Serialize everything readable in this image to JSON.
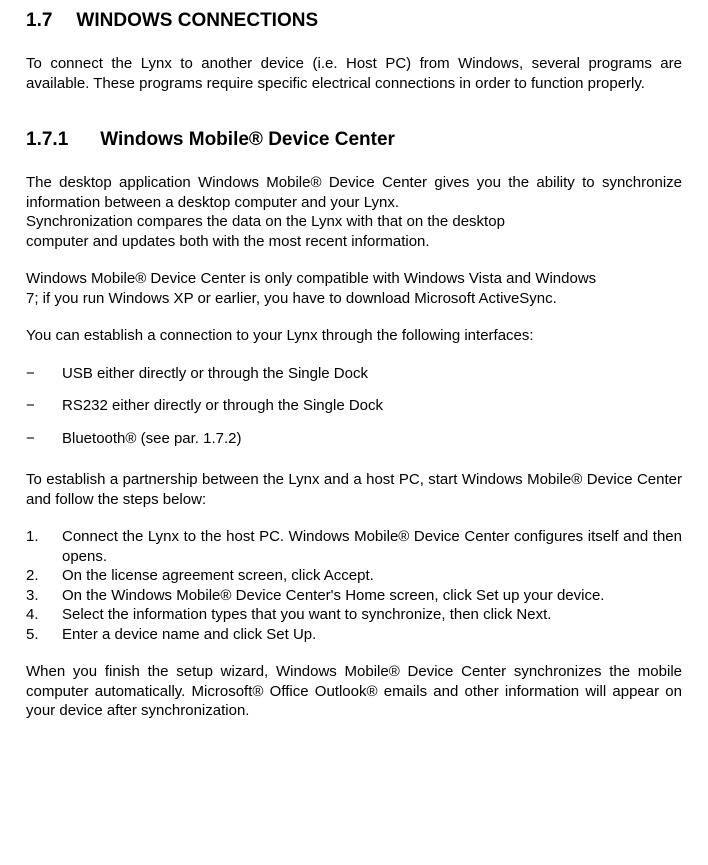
{
  "heading1": {
    "number": "1.7",
    "title": "WINDOWS CONNECTIONS"
  },
  "para1": "To connect the Lynx to another device (i.e. Host PC) from Windows, several programs are available. These programs require specific electrical connections in order to function properly.",
  "heading2": {
    "number": "1.7.1",
    "title": "Windows Mobile® Device Center"
  },
  "para2a": "The desktop application Windows Mobile® Device Center gives you the ability to synchronize information between a desktop computer and your Lynx.",
  "para2b": "Synchronization compares the data on the Lynx with that on the desktop",
  "para2c": "computer and updates both with the most recent information.",
  "para3a": "Windows Mobile® Device Center is only compatible with Windows Vista and Windows",
  "para3b": "7; if you run Windows XP or earlier, you have to download Microsoft ActiveSync.",
  "para4": "You can establish a connection to your Lynx through the following interfaces:",
  "bullets": [
    "USB either directly or through the Single Dock",
    "RS232 either directly or through the Single Dock",
    "Bluetooth® (see par. 1.7.2)"
  ],
  "para5": "To establish a partnership between the Lynx and a host PC, start Windows Mobile® Device Center and follow the steps below:",
  "steps": [
    "Connect the Lynx to the host PC. Windows Mobile® Device Center configures itself and then opens.",
    "On the license agreement screen, click Accept.",
    "On the Windows Mobile® Device Center's Home screen, click Set up your device.",
    "Select the information types that you want to synchronize, then click Next.",
    "Enter a device name and click Set Up."
  ],
  "para6": "When you finish the setup wizard, Windows Mobile® Device Center synchronizes the mobile computer automatically. Microsoft® Office Outlook® emails and other information will appear on your device after synchronization.",
  "colors": {
    "background": "#ffffff",
    "text": "#000000"
  },
  "fonts": {
    "body_size": 15,
    "heading_size": 19
  }
}
